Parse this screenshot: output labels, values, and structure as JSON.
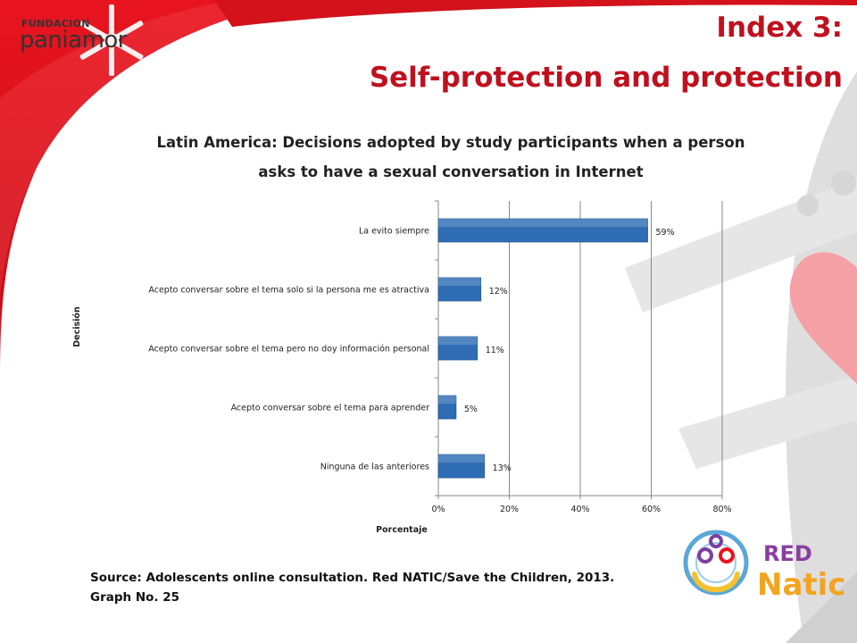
{
  "logo": {
    "line1": "FUNDACION",
    "line2": "paniamor"
  },
  "header": {
    "title_line1": "Index 3:",
    "title_line2": "Self-protection and protection"
  },
  "chart_data": {
    "type": "bar",
    "orientation": "horizontal",
    "title_line1": "Latin America: Decisions adopted by study participants when a person",
    "title_line2": "asks to have a sexual conversation in Internet",
    "xlabel": "Porcentaje",
    "ylabel": "Decisión",
    "xlim": [
      0,
      80
    ],
    "xticks": [
      "0%",
      "20%",
      "40%",
      "60%",
      "80%"
    ],
    "categories": [
      "La evito siempre",
      "Acepto conversar sobre el tema solo si la persona me es atractiva",
      "Acepto conversar sobre el tema pero no doy información personal",
      "Acepto conversar sobre el tema para aprender",
      "Ninguna de las anteriores"
    ],
    "values": [
      59,
      12,
      11,
      5,
      13
    ],
    "value_labels": [
      "59%",
      "12%",
      "11%",
      "5%",
      "13%"
    ],
    "grid": "vertical",
    "bar_color": "#2e6db4"
  },
  "footer": {
    "source_line1": "Source: Adolescents online consultation.  Red NATIC/Save the Children, 2013.",
    "source_line2": "Graph No. 25"
  },
  "partner_logo": {
    "word1": "RED",
    "word2": "Natic"
  },
  "colors": {
    "brand_red": "#c0101e",
    "background_gray": "#dcdcdc",
    "heart_pink": "#f4a0a4"
  }
}
